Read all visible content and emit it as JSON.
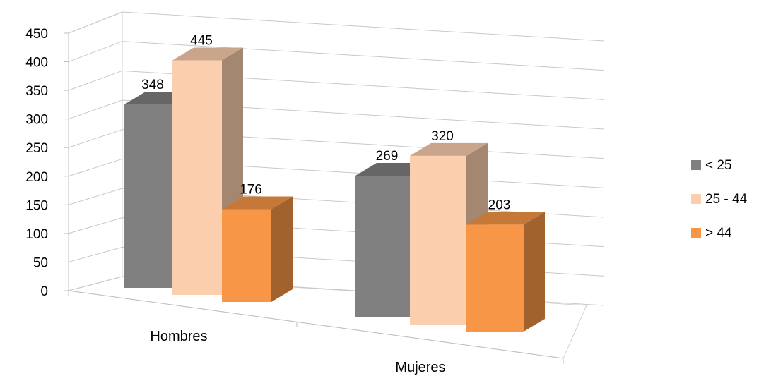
{
  "chart_data": {
    "type": "bar",
    "style": "3d-clustered-column",
    "categories": [
      "Hombres",
      "Mujeres"
    ],
    "series": [
      {
        "name": "< 25",
        "values": [
          348,
          269
        ],
        "color": "#808080"
      },
      {
        "name": "25 - 44",
        "values": [
          445,
          320
        ],
        "color": "#FBCFAE"
      },
      {
        "name": "> 44",
        "values": [
          176,
          203
        ],
        "color": "#F79646"
      }
    ],
    "ylim": [
      0,
      450
    ],
    "yticks": [
      "0",
      "50",
      "100",
      "150",
      "200",
      "250",
      "300",
      "350",
      "400",
      "450"
    ],
    "grid": true,
    "legend_position": "right",
    "data_labels": true
  }
}
